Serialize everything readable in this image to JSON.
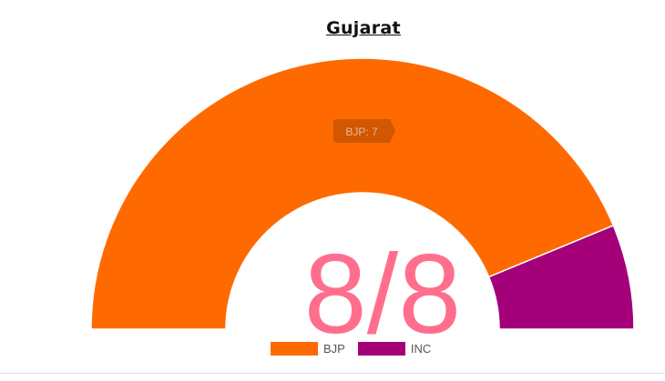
{
  "chart_data": {
    "type": "pie",
    "variant": "semi-donut",
    "title": "Gujarat",
    "categories": [
      "BJP",
      "INC"
    ],
    "values": [
      7,
      1
    ],
    "colors": [
      "#ff6a00",
      "#a3007a"
    ],
    "legend": "bottom",
    "center_label": "8/8",
    "tooltip": "BJP: 7"
  }
}
